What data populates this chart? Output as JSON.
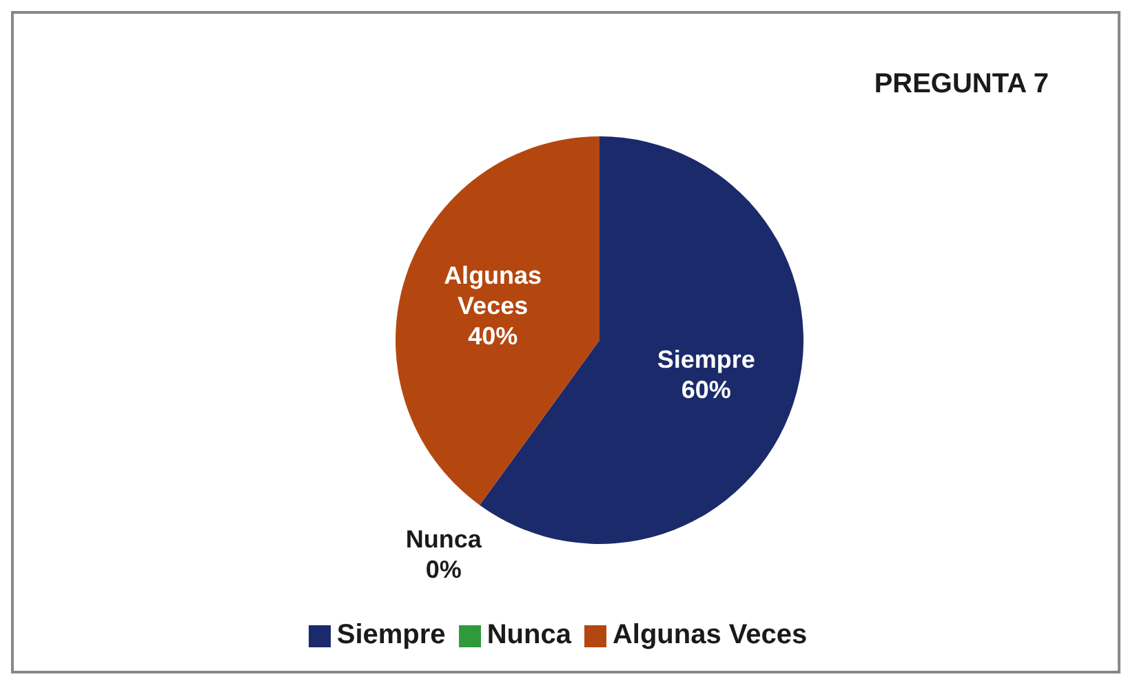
{
  "chart_data": {
    "type": "pie",
    "title": "PREGUNTA 7",
    "categories": [
      "Siempre",
      "Nunca",
      "Algunas Veces"
    ],
    "values": [
      60,
      0,
      40
    ],
    "value_labels": [
      "60%",
      "0%",
      "40%"
    ],
    "colors": [
      "#1b2a6b",
      "#2f9a3c",
      "#b4470f"
    ],
    "legend": "bottom"
  }
}
